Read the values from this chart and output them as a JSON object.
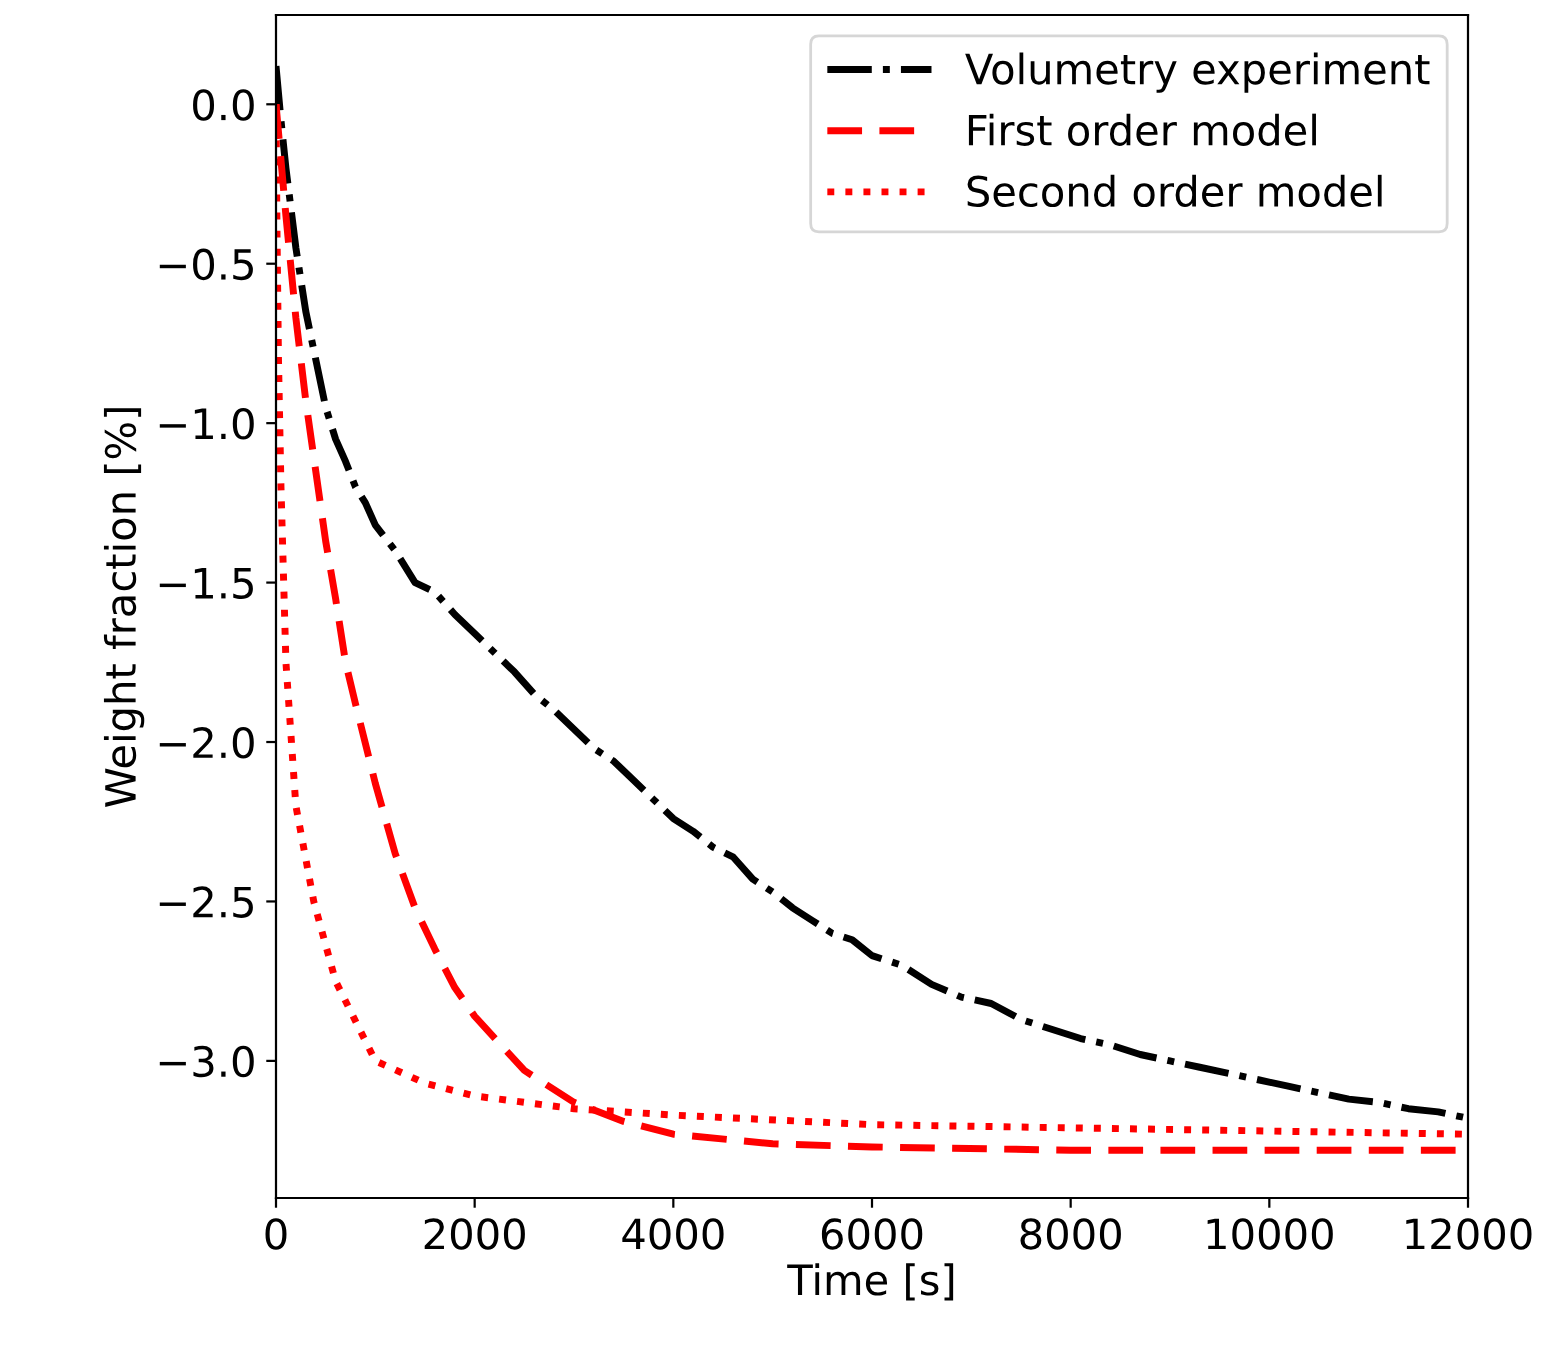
{
  "chart_data": {
    "type": "line",
    "xlabel": "Time [s]",
    "ylabel": "Weight fraction [%]",
    "xlim": [
      0,
      12000
    ],
    "xticks": [
      0,
      2000,
      4000,
      6000,
      8000,
      10000,
      12000
    ],
    "ylim": [
      -3.43,
      0.28
    ],
    "yticks": [
      {
        "value": 0,
        "label": "0.0"
      },
      {
        "value": -0.5,
        "label": "−0.5"
      },
      {
        "value": -1,
        "label": "−1.0"
      },
      {
        "value": -1.5,
        "label": "−1.5"
      },
      {
        "value": -2,
        "label": "−2.0"
      },
      {
        "value": -2.5,
        "label": "−2.5"
      },
      {
        "value": -3,
        "label": "−3.0"
      }
    ],
    "grid": false,
    "legend": "top right",
    "series": [
      {
        "name": "Volumetry experiment",
        "color": "#000000",
        "line_style": "dashdot",
        "x": [
          0,
          50,
          100,
          200,
          300,
          400,
          500,
          600,
          700,
          800,
          900,
          1000,
          1200,
          1400,
          1600,
          1800,
          2000,
          2200,
          2400,
          2600,
          2800,
          3000,
          3200,
          3400,
          3600,
          3800,
          4000,
          4200,
          4400,
          4600,
          4800,
          5000,
          5200,
          5400,
          5600,
          5800,
          6000,
          6300,
          6600,
          6900,
          7200,
          7500,
          7800,
          8100,
          8400,
          8700,
          9000,
          9300,
          9600,
          9900,
          10200,
          10500,
          10800,
          11100,
          11400,
          11700,
          12000
        ],
        "values": [
          0.12,
          -0.05,
          -0.2,
          -0.45,
          -0.65,
          -0.8,
          -0.95,
          -1.05,
          -1.12,
          -1.2,
          -1.25,
          -1.32,
          -1.4,
          -1.5,
          -1.53,
          -1.6,
          -1.66,
          -1.72,
          -1.78,
          -1.85,
          -1.9,
          -1.96,
          -2.02,
          -2.06,
          -2.12,
          -2.18,
          -2.24,
          -2.28,
          -2.33,
          -2.36,
          -2.43,
          -2.47,
          -2.52,
          -2.56,
          -2.6,
          -2.62,
          -2.67,
          -2.7,
          -2.76,
          -2.8,
          -2.82,
          -2.87,
          -2.9,
          -2.93,
          -2.95,
          -2.98,
          -3.0,
          -3.02,
          -3.04,
          -3.06,
          -3.08,
          -3.1,
          -3.12,
          -3.13,
          -3.15,
          -3.16,
          -3.18
        ]
      },
      {
        "name": "First order model",
        "color": "#ff0000",
        "line_style": "dashed",
        "x": [
          0,
          100,
          200,
          300,
          400,
          500,
          600,
          700,
          800,
          1000,
          1200,
          1400,
          1600,
          1800,
          2000,
          2500,
          3000,
          3500,
          4000,
          5000,
          6000,
          8000,
          12000
        ],
        "values": [
          0.0,
          -0.35,
          -0.67,
          -0.93,
          -1.15,
          -1.37,
          -1.55,
          -1.75,
          -1.88,
          -2.13,
          -2.35,
          -2.52,
          -2.65,
          -2.77,
          -2.86,
          -3.03,
          -3.13,
          -3.19,
          -3.23,
          -3.26,
          -3.27,
          -3.28,
          -3.28
        ]
      },
      {
        "name": "Second order model",
        "color": "#ff0000",
        "line_style": "dotted",
        "x": [
          0,
          10,
          25,
          50,
          100,
          200,
          380,
          600,
          1000,
          1500,
          2000,
          3000,
          4000,
          6000,
          8000,
          10000,
          12000
        ],
        "values": [
          0.0,
          -0.4,
          -0.8,
          -1.2,
          -1.75,
          -2.2,
          -2.5,
          -2.75,
          -3.0,
          -3.07,
          -3.11,
          -3.15,
          -3.17,
          -3.2,
          -3.21,
          -3.22,
          -3.23
        ]
      }
    ]
  }
}
